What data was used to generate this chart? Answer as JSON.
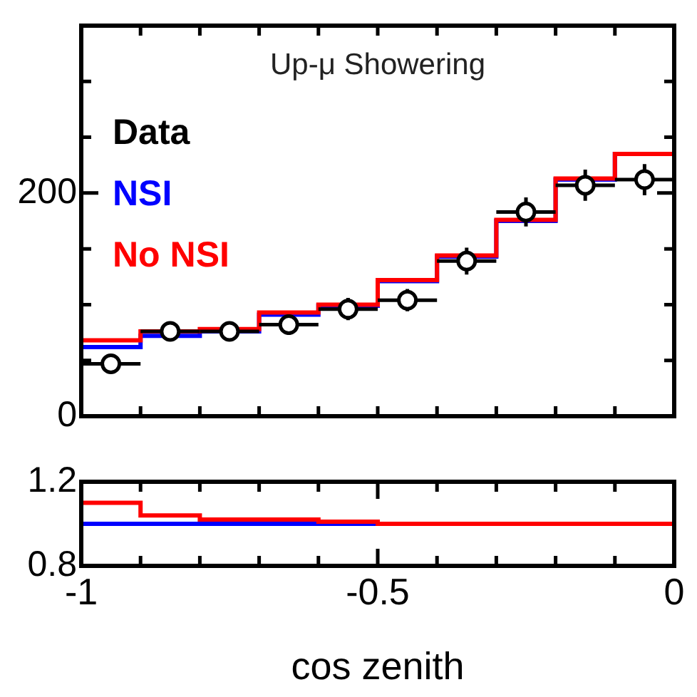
{
  "chart_data": [
    {
      "type": "histogram",
      "title": "Up-μ Showering",
      "legend": "top left",
      "grid": false,
      "tick_labels": "y",
      "marker": "circle",
      "bins": [
        -1,
        -0.9,
        -0.8,
        -0.7,
        -0.6,
        -0.5,
        -0.4,
        -0.3,
        -0.2,
        -0.1,
        0
      ],
      "xlim": [
        -1,
        0
      ],
      "xticks": [
        {
          "value": -1,
          "label": null
        },
        {
          "value": -0.9,
          "label": null
        },
        {
          "value": -0.8,
          "label": null
        },
        {
          "value": -0.7,
          "label": null
        },
        {
          "value": -0.6,
          "label": null
        },
        {
          "value": -0.5,
          "label": null
        },
        {
          "value": -0.4,
          "label": null
        },
        {
          "value": -0.3,
          "label": null
        },
        {
          "value": -0.2,
          "label": null
        },
        {
          "value": -0.1,
          "label": null
        },
        {
          "value": 0,
          "label": null
        }
      ],
      "ylim": [
        0,
        350
      ],
      "yticks": [
        0,
        {
          "value": 50,
          "label": null
        },
        {
          "value": 100,
          "label": null
        },
        {
          "value": 150,
          "label": null
        },
        200,
        {
          "value": 250,
          "label": null
        },
        {
          "value": 300,
          "label": null
        }
      ],
      "series": [
        {
          "name": "NSI",
          "color": "#0000ff",
          "values": [
            62,
            72,
            76,
            91,
            99,
            121,
            143,
            175,
            212,
            235
          ]
        },
        {
          "name": "No NSI",
          "color": "#ff0000",
          "values": [
            68,
            76,
            78,
            93,
            100,
            122,
            144,
            176,
            213,
            235
          ]
        },
        {
          "name": "Data",
          "type": "scatter",
          "color": "#000000",
          "x": [
            -0.95,
            -0.85,
            -0.75,
            -0.65,
            -0.55,
            -0.45,
            -0.35,
            -0.25,
            -0.15,
            -0.05
          ],
          "values": [
            47,
            76,
            76,
            82,
            96,
            104,
            139,
            183,
            207,
            212
          ],
          "errors": [
            7,
            8,
            8,
            9,
            10,
            10,
            12,
            13,
            14,
            14
          ],
          "xerrors": [
            0.05,
            0.05,
            0.05,
            0.05,
            0.05,
            0.05,
            0.05,
            0.05,
            0.05,
            0.05
          ]
        }
      ]
    },
    {
      "type": "histogram",
      "xlabel": "cos zenith",
      "grid": false,
      "bins": [
        -1,
        -0.9,
        -0.8,
        -0.7,
        -0.6,
        -0.5,
        -0.4,
        -0.3,
        -0.2,
        -0.1,
        0
      ],
      "xlim": [
        -1,
        0
      ],
      "xticks": [
        -1,
        {
          "value": -0.9,
          "label": null
        },
        {
          "value": -0.8,
          "label": null
        },
        {
          "value": -0.7,
          "label": null
        },
        {
          "value": -0.6,
          "label": null
        },
        -0.5,
        {
          "value": -0.4,
          "label": null
        },
        {
          "value": -0.3,
          "label": null
        },
        {
          "value": -0.2,
          "label": null
        },
        {
          "value": -0.1,
          "label": null
        },
        0
      ],
      "ylim": [
        0.8,
        1.2
      ],
      "yticks": [
        0.8,
        1.2
      ],
      "series": [
        {
          "color": "#0000ff",
          "values": [
            1,
            1,
            1,
            1,
            1,
            1,
            1,
            1,
            1,
            1
          ]
        },
        {
          "color": "#ff0000",
          "values": [
            1.1,
            1.04,
            1.02,
            1.02,
            1.01,
            1,
            1,
            1,
            1,
            1
          ]
        }
      ]
    }
  ]
}
